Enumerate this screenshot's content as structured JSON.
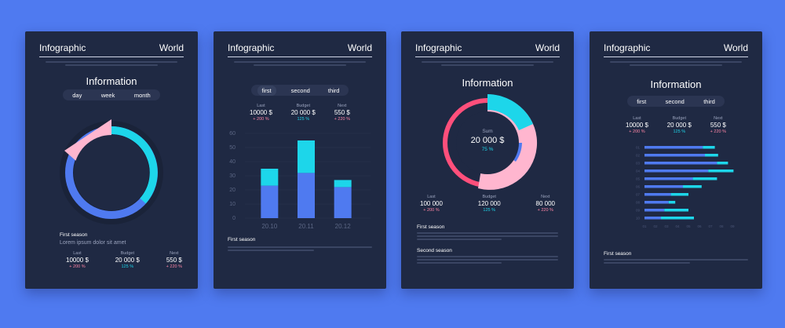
{
  "header": {
    "title": "Infographic",
    "region": "World"
  },
  "card1": {
    "title": "Information",
    "tabs": [
      "day",
      "week",
      "month"
    ],
    "section_title": "First season",
    "section_text": "Lorem ipsum dolor sit amet",
    "stats": [
      {
        "label": "Last",
        "value": "10000 $",
        "change": "+ 200 %"
      },
      {
        "label": "Budget",
        "value": "20 000 $",
        "change": "125 %"
      },
      {
        "label": "Next",
        "value": "550 $",
        "change": "+ 220 %"
      }
    ]
  },
  "card2": {
    "tabs": [
      "first",
      "second",
      "third"
    ],
    "stats": [
      {
        "label": "Last",
        "value": "10000 $",
        "change": "+ 200 %"
      },
      {
        "label": "Budget",
        "value": "20 000 $",
        "change": "125 %"
      },
      {
        "label": "Next",
        "value": "550 $",
        "change": "+ 220 %"
      }
    ],
    "section_title": "First season"
  },
  "card3": {
    "title": "Information",
    "sum_label": "Sum",
    "sum_value": "20 000 $",
    "sum_percent": "75 %",
    "stats": [
      {
        "label": "Last",
        "value": "100 000",
        "change": "+ 200 %"
      },
      {
        "label": "Budget",
        "value": "120 000",
        "change": "125 %"
      },
      {
        "label": "Next",
        "value": "80 000",
        "change": "+ 220 %"
      }
    ],
    "section1": "First season",
    "section2": "Second season"
  },
  "card4": {
    "title": "Information",
    "tabs": [
      "first",
      "second",
      "third"
    ],
    "stats": [
      {
        "label": "Last",
        "value": "10000 $",
        "change": "+ 200 %"
      },
      {
        "label": "Budget",
        "value": "20 000 $",
        "change": "125 %"
      },
      {
        "label": "Next",
        "value": "550 $",
        "change": "+ 220 %"
      }
    ],
    "section_title": "First season"
  },
  "colors": {
    "background": "#4f7af0",
    "card": "#1f2943",
    "blue": "#4f7af0",
    "cyan": "#1dd6ea",
    "pink": "#ffb6cf",
    "red": "#ff4f7b"
  },
  "chart_data": [
    {
      "type": "bar",
      "categories": [
        "20.10",
        "20.11",
        "20.12"
      ],
      "series": [
        {
          "values": [
            23,
            32,
            22
          ]
        },
        {
          "values": [
            12,
            23,
            5
          ]
        }
      ],
      "stacked": true,
      "yticks": [
        0,
        10,
        20,
        30,
        40,
        50,
        60
      ],
      "ylim": [
        0,
        60
      ]
    },
    {
      "type": "bar",
      "orientation": "horizontal",
      "categories": [
        "01",
        "02",
        "03",
        "04",
        "05",
        "06",
        "07",
        "08",
        "09",
        "10"
      ],
      "series": [
        {
          "values": [
            5.3,
            5.5,
            6.6,
            5.8,
            4.4,
            3.5,
            2.4,
            2.2,
            1.8,
            1.5
          ]
        },
        {
          "values": [
            1.1,
            1.2,
            1.0,
            2.3,
            2.2,
            1.7,
            1.6,
            0.6,
            2.2,
            3.0
          ]
        }
      ],
      "stacked": true,
      "xticks": [
        "01",
        "02",
        "03",
        "04",
        "05",
        "06",
        "07",
        "08",
        "09"
      ]
    }
  ]
}
